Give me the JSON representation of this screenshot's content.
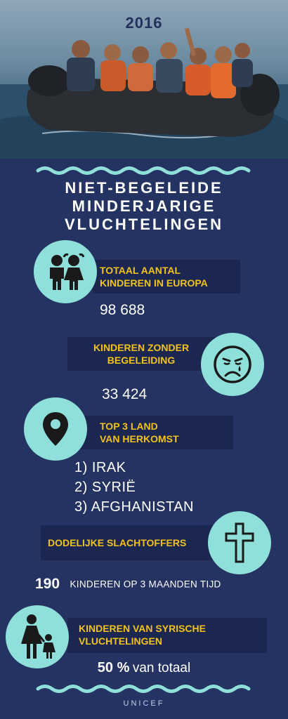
{
  "header": {
    "year": "2016"
  },
  "title": {
    "line1": "NIET-BEGELEIDE",
    "line2": "MINDERJARIGE",
    "line3": "VLUCHTELINGEN"
  },
  "sections": {
    "total_children": {
      "label_line1": "TOTAAL AANTAL",
      "label_line2": "KINDEREN IN EUROPA",
      "value": "98 688",
      "icon": "children-icon"
    },
    "unaccompanied": {
      "label_line1": "KINDEREN ZONDER",
      "label_line2": "BEGELEIDING",
      "value": "33 424",
      "icon": "sad-face-icon"
    },
    "top_countries": {
      "label_line1": "TOP 3 LAND",
      "label_line2": "VAN HERKOMST",
      "items": [
        "1) IRAK",
        "2) SYRIË",
        "3) AFGHANISTAN"
      ],
      "icon": "location-pin-icon"
    },
    "fatalities": {
      "label": "DODELIJKE SLACHTOFFERS",
      "value": "190",
      "detail": "KINDEREN OP 3 MAANDEN TIJD",
      "icon": "cross-icon"
    },
    "syrian_children": {
      "label_line1": "KINDEREN VAN SYRISCHE",
      "label_line2": "VLUCHTELINGEN",
      "value": "50 %",
      "detail": "van totaal",
      "icon": "mother-child-icon"
    }
  },
  "footer": {
    "source": "UNICEF"
  },
  "colors": {
    "background": "#243362",
    "accent": "#8fe0da",
    "label": "#f2c21b",
    "label_bg": "#1b2750"
  }
}
